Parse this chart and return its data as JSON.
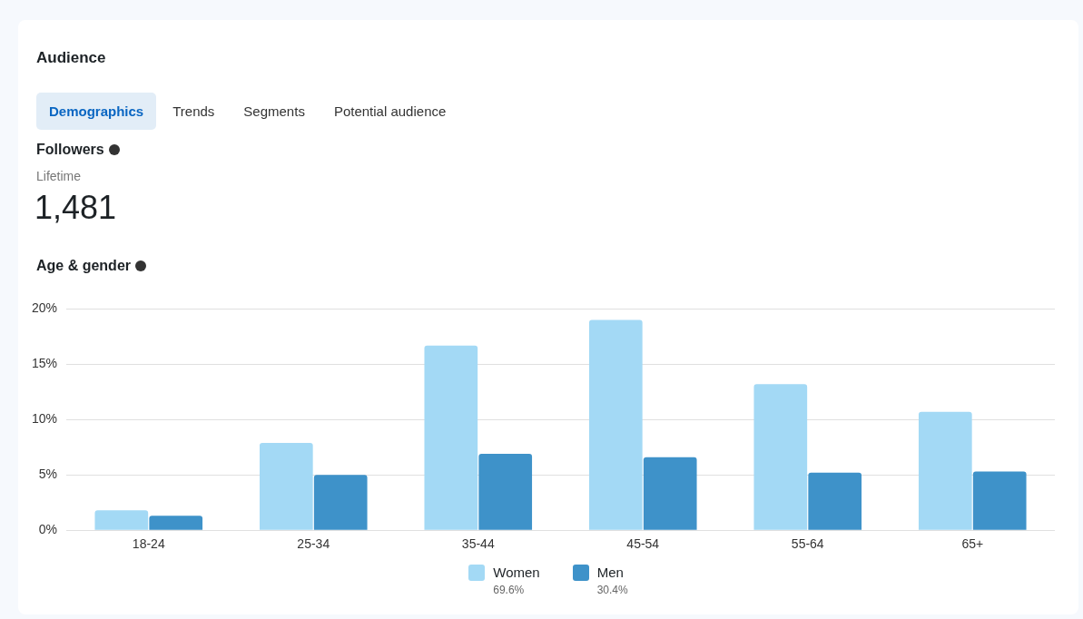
{
  "chart_data": {
    "type": "bar",
    "title": "Age & gender",
    "annotations": [
      "Audience",
      "Demographics",
      "Trends",
      "Segments",
      "Potential audience",
      "Followers",
      "Lifetime",
      "1,481",
      "69.6%",
      "30.4%"
    ],
    "categories": [
      "18-24",
      "25-34",
      "35-44",
      "45-54",
      "55-64",
      "65+"
    ],
    "series": [
      {
        "name": "Women",
        "color": "#a3d9f5",
        "values": [
          1.8,
          7.9,
          16.7,
          19.0,
          13.2,
          10.7
        ]
      },
      {
        "name": "Men",
        "color": "#3e92c9",
        "values": [
          1.3,
          5.0,
          6.9,
          6.6,
          5.2,
          5.3
        ]
      }
    ],
    "ylim": [
      0,
      20
    ],
    "yticks": [
      {
        "value": 0,
        "label": "0%"
      },
      {
        "value": 5,
        "label": "5%"
      },
      {
        "value": 10,
        "label": "10%"
      },
      {
        "value": 15,
        "label": "15%"
      },
      {
        "value": 20,
        "label": "20%"
      }
    ],
    "grid": "y",
    "legend": "bottom"
  }
}
